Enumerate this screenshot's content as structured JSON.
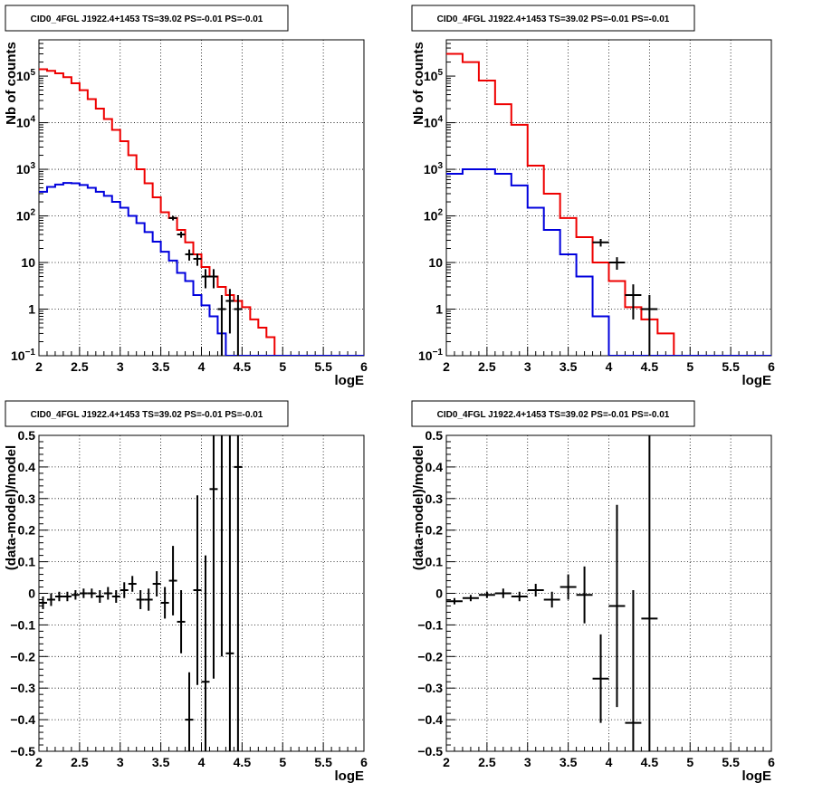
{
  "colors": {
    "data": "#000000",
    "model_total": "#ee0000",
    "model_bkg": "#0000dd",
    "grid": "#000000"
  },
  "chart_data": [
    {
      "type": "line",
      "title": "CID0_4FGL J1922.4+1453 TS=39.02 PS=-0.01 PS=-0.01",
      "xlabel": "logE",
      "ylabel": "Nb of counts",
      "xlim": [
        2,
        6
      ],
      "ylim": [
        0.1,
        600000
      ],
      "yscale": "log",
      "grid": true,
      "x_ticks": [
        "2",
        "2.5",
        "3",
        "3.5",
        "4",
        "4.5",
        "5",
        "5.5",
        "6"
      ],
      "y_ticks": [
        "10^-1",
        "1",
        "10",
        "10^2",
        "10^3",
        "10^4",
        "10^5"
      ],
      "series": [
        {
          "role": "model_total",
          "binwidth": 0.1,
          "x": [
            2.0,
            2.1,
            2.2,
            2.3,
            2.4,
            2.5,
            2.6,
            2.7,
            2.8,
            2.9,
            3.0,
            3.1,
            3.2,
            3.3,
            3.4,
            3.5,
            3.6,
            3.7,
            3.8,
            3.9,
            4.0,
            4.1,
            4.2,
            4.3,
            4.4,
            4.5,
            4.6,
            4.7,
            4.8,
            4.9,
            5.0,
            5.1,
            5.2,
            5.3,
            5.4,
            5.5,
            5.6,
            5.7,
            5.8,
            5.9
          ],
          "values": [
            140000,
            130000,
            115000,
            95000,
            70000,
            50000,
            32000,
            20000,
            12000,
            7000,
            4000,
            2000,
            1000,
            500,
            250,
            120,
            90,
            50,
            27,
            15,
            8,
            5,
            3,
            2,
            1.5,
            1.1,
            0.6,
            0.4,
            0.25,
            0.1,
            0.1,
            0.1,
            0.1,
            0.1,
            0.1,
            0.1,
            0.1,
            0.1,
            0.1,
            0.1
          ]
        },
        {
          "role": "model_bkg",
          "binwidth": 0.1,
          "x": [
            2.0,
            2.1,
            2.2,
            2.3,
            2.4,
            2.5,
            2.6,
            2.7,
            2.8,
            2.9,
            3.0,
            3.1,
            3.2,
            3.3,
            3.4,
            3.5,
            3.6,
            3.7,
            3.8,
            3.9,
            4.0,
            4.1,
            4.2,
            4.3,
            4.4,
            4.5,
            4.6,
            4.7,
            4.8,
            4.9,
            5.0,
            5.1,
            5.2,
            5.3,
            5.4,
            5.5,
            5.6,
            5.7,
            5.8,
            5.9
          ],
          "values": [
            330,
            420,
            470,
            510,
            500,
            460,
            400,
            330,
            270,
            200,
            150,
            100,
            70,
            45,
            28,
            17,
            11,
            6,
            4,
            2,
            1.2,
            0.7,
            0.3,
            0.1,
            0.1,
            0.1,
            0.1,
            0.1,
            0.1,
            0.1,
            0.1,
            0.1,
            0.1,
            0.1,
            0.1,
            0.1,
            0.1,
            0.1,
            0.1,
            0.1
          ]
        },
        {
          "role": "data",
          "type": "errorbar",
          "binwidth": 0.1,
          "x": [
            3.65,
            3.75,
            3.85,
            3.95,
            4.05,
            4.15,
            4.25,
            4.35,
            4.45
          ],
          "values": [
            90,
            40,
            15,
            12,
            5,
            5,
            1,
            1.5,
            1
          ],
          "err": [
            10,
            6,
            4,
            3.5,
            2.2,
            2.2,
            1,
            1.2,
            1
          ]
        }
      ]
    },
    {
      "type": "line",
      "title": "CID0_4FGL J1922.4+1453 TS=39.02 PS=-0.01 PS=-0.01",
      "xlabel": "logE",
      "ylabel": "Nb of counts",
      "xlim": [
        2,
        6
      ],
      "ylim": [
        0.1,
        600000
      ],
      "yscale": "log",
      "grid": true,
      "x_ticks": [
        "2",
        "2.5",
        "3",
        "3.5",
        "4",
        "4.5",
        "5",
        "5.5",
        "6"
      ],
      "y_ticks": [
        "10^-1",
        "1",
        "10",
        "10^2",
        "10^3",
        "10^4",
        "10^5"
      ],
      "series": [
        {
          "role": "model_total",
          "binwidth": 0.2,
          "x": [
            2.0,
            2.2,
            2.4,
            2.6,
            2.8,
            3.0,
            3.2,
            3.4,
            3.6,
            3.8,
            4.0,
            4.2,
            4.4,
            4.6,
            4.8,
            5.0,
            5.2,
            5.4,
            5.6,
            5.8
          ],
          "values": [
            300000,
            200000,
            80000,
            25000,
            9000,
            1200,
            300,
            90,
            35,
            10,
            4,
            1.1,
            0.6,
            0.3,
            0.1,
            0.1,
            0.1,
            0.1,
            0.1,
            0.1
          ]
        },
        {
          "role": "model_bkg",
          "binwidth": 0.2,
          "x": [
            2.0,
            2.2,
            2.4,
            2.6,
            2.8,
            3.0,
            3.2,
            3.4,
            3.6,
            3.8,
            4.0,
            4.2,
            4.4,
            4.6,
            4.8,
            5.0,
            5.2,
            5.4,
            5.6,
            5.8
          ],
          "values": [
            800,
            1000,
            1000,
            800,
            450,
            150,
            50,
            15,
            5,
            0.7,
            0.1,
            0.1,
            0.1,
            0.1,
            0.1,
            0.1,
            0.1,
            0.1,
            0.1,
            0.1
          ]
        },
        {
          "role": "data",
          "type": "errorbar",
          "binwidth": 0.2,
          "x": [
            3.9,
            4.1,
            4.3,
            4.5
          ],
          "values": [
            27,
            10,
            2,
            1
          ],
          "err": [
            5,
            3,
            1.4,
            1
          ]
        }
      ]
    },
    {
      "type": "line",
      "title": "CID0_4FGL J1922.4+1453 TS=39.02 PS=-0.01 PS=-0.01",
      "xlabel": "logE",
      "ylabel": "(data-model)/model",
      "xlim": [
        2,
        6
      ],
      "ylim": [
        -0.5,
        0.5
      ],
      "yscale": "linear",
      "grid": true,
      "x_ticks": [
        "2",
        "2.5",
        "3",
        "3.5",
        "4",
        "4.5",
        "5",
        "5.5",
        "6"
      ],
      "y_ticks": [
        "−0.5",
        "−0.4",
        "−0.3",
        "−0.2",
        "−0.1",
        "0",
        "0.1",
        "0.2",
        "0.3",
        "0.4",
        "0.5"
      ],
      "series": [
        {
          "role": "data",
          "type": "errorbar",
          "binwidth": 0.1,
          "x": [
            2.05,
            2.15,
            2.25,
            2.35,
            2.45,
            2.55,
            2.65,
            2.75,
            2.85,
            2.95,
            3.05,
            3.15,
            3.25,
            3.35,
            3.45,
            3.55,
            3.65,
            3.75,
            3.85,
            3.95,
            4.05,
            4.15,
            4.25,
            4.35,
            4.45
          ],
          "values": [
            -0.03,
            -0.02,
            -0.01,
            -0.01,
            -0.005,
            0.0,
            0.0,
            -0.01,
            0.0,
            -0.01,
            0.01,
            0.03,
            -0.02,
            -0.02,
            0.03,
            -0.03,
            0.04,
            -0.09,
            -0.4,
            0.01,
            -0.28,
            0.33,
            0.6,
            -0.19,
            0.4
          ],
          "err": [
            0.02,
            0.02,
            0.015,
            0.015,
            0.015,
            0.015,
            0.015,
            0.02,
            0.02,
            0.02,
            0.025,
            0.025,
            0.03,
            0.035,
            0.04,
            0.05,
            0.11,
            0.1,
            0.15,
            0.3,
            0.4,
            0.6,
            0.8,
            0.7,
            1.0
          ]
        }
      ]
    },
    {
      "type": "line",
      "title": "CID0_4FGL J1922.4+1453 TS=39.02 PS=-0.01 PS=-0.01",
      "xlabel": "logE",
      "ylabel": "(data-model)/model",
      "xlim": [
        2,
        6
      ],
      "ylim": [
        -0.5,
        0.5
      ],
      "yscale": "linear",
      "grid": true,
      "x_ticks": [
        "2",
        "2.5",
        "3",
        "3.5",
        "4",
        "4.5",
        "5",
        "5.5",
        "6"
      ],
      "y_ticks": [
        "−0.5",
        "−0.4",
        "−0.3",
        "−0.2",
        "−0.1",
        "0",
        "0.1",
        "0.2",
        "0.3",
        "0.4",
        "0.5"
      ],
      "series": [
        {
          "role": "data",
          "type": "errorbar",
          "binwidth": 0.2,
          "x": [
            2.1,
            2.3,
            2.5,
            2.7,
            2.9,
            3.1,
            3.3,
            3.5,
            3.7,
            3.9,
            4.1,
            4.3,
            4.5
          ],
          "values": [
            -0.025,
            -0.015,
            -0.005,
            0.0,
            -0.01,
            0.01,
            -0.02,
            0.02,
            -0.005,
            -0.27,
            -0.04,
            -0.41,
            -0.08
          ],
          "err": [
            0.01,
            0.01,
            0.01,
            0.015,
            0.015,
            0.02,
            0.025,
            0.04,
            0.09,
            0.14,
            0.32,
            0.42,
            0.6
          ]
        }
      ]
    }
  ]
}
